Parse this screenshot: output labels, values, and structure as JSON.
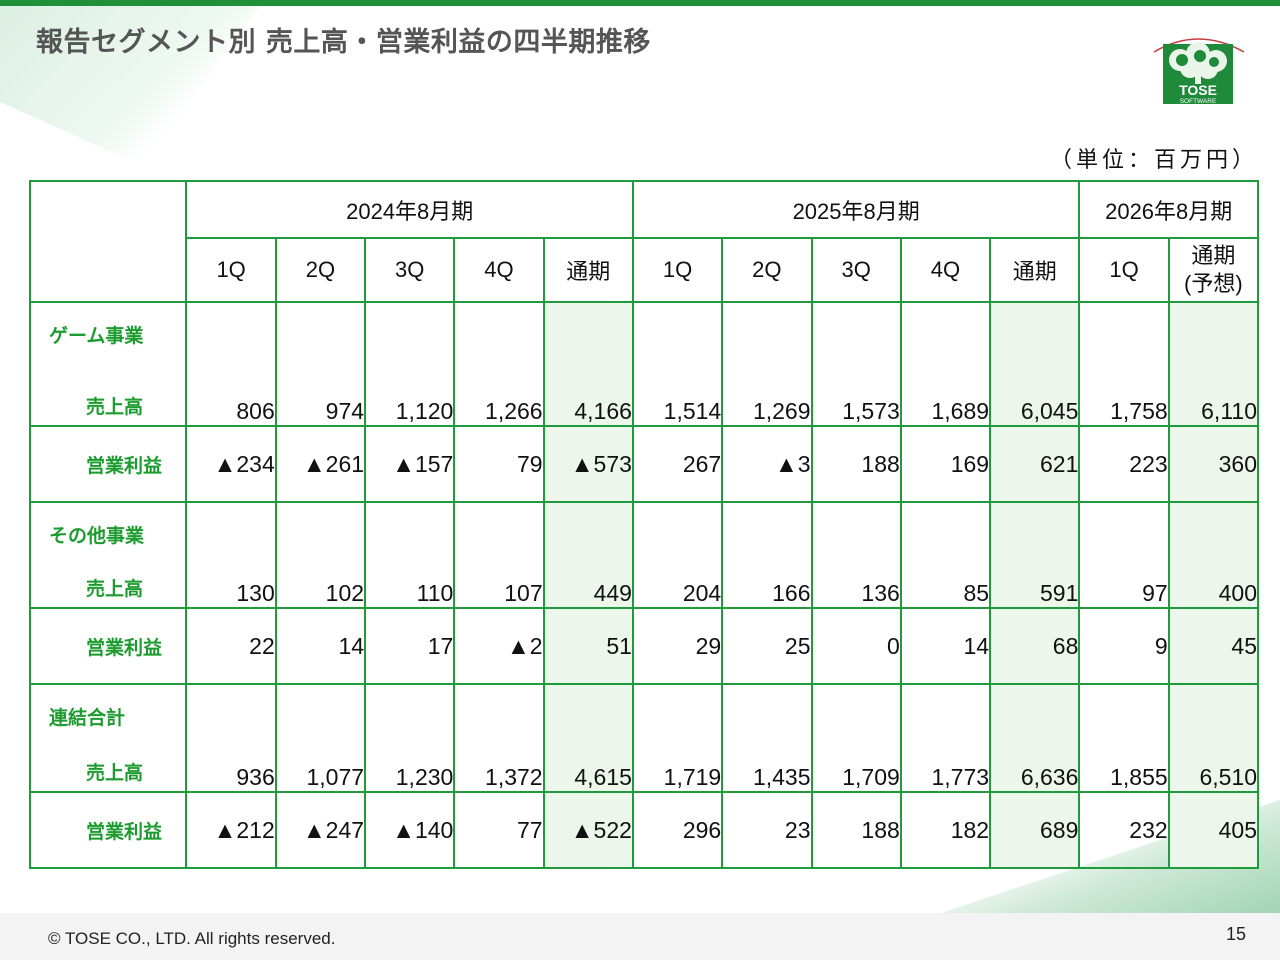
{
  "title": "報告セグメント別 売上高・営業利益の四半期推移",
  "unit": "（単位：百万円）",
  "logo": {
    "line1": "TOSE",
    "line2": "SOFTWARE"
  },
  "headers": {
    "fy2024": "2024年8月期",
    "fy2025": "2025年8月期",
    "fy2026": "2026年8月期",
    "q1": "1Q",
    "q2": "2Q",
    "q3": "3Q",
    "q4": "4Q",
    "full": "通期",
    "forecast_line1": "通期",
    "forecast_line2": "(予想)"
  },
  "segments": [
    {
      "name": "ゲーム事業",
      "sales_label": "売上高",
      "profit_label": "営業利益",
      "sales": [
        "806",
        "974",
        "1,120",
        "1,266",
        "4,166",
        "1,514",
        "1,269",
        "1,573",
        "1,689",
        "6,045",
        "1,758",
        "6,110"
      ],
      "profit": [
        "▲234",
        "▲261",
        "▲157",
        "79",
        "▲573",
        "267",
        "▲3",
        "188",
        "169",
        "621",
        "223",
        "360"
      ]
    },
    {
      "name": "その他事業",
      "sales_label": "売上高",
      "profit_label": "営業利益",
      "sales": [
        "130",
        "102",
        "110",
        "107",
        "449",
        "204",
        "166",
        "136",
        "85",
        "591",
        "97",
        "400"
      ],
      "profit": [
        "22",
        "14",
        "17",
        "▲2",
        "51",
        "29",
        "25",
        "0",
        "14",
        "68",
        "9",
        "45"
      ]
    },
    {
      "name": "連結合計",
      "sales_label": "売上高",
      "profit_label": "営業利益",
      "sales": [
        "936",
        "1,077",
        "1,230",
        "1,372",
        "4,615",
        "1,719",
        "1,435",
        "1,709",
        "1,773",
        "6,636",
        "1,855",
        "6,510"
      ],
      "profit": [
        "▲212",
        "▲247",
        "▲140",
        "77",
        "▲522",
        "296",
        "23",
        "188",
        "182",
        "689",
        "232",
        "405"
      ]
    }
  ],
  "footer": {
    "copyright": "© TOSE CO., LTD. All rights reserved.",
    "page": "15"
  }
}
